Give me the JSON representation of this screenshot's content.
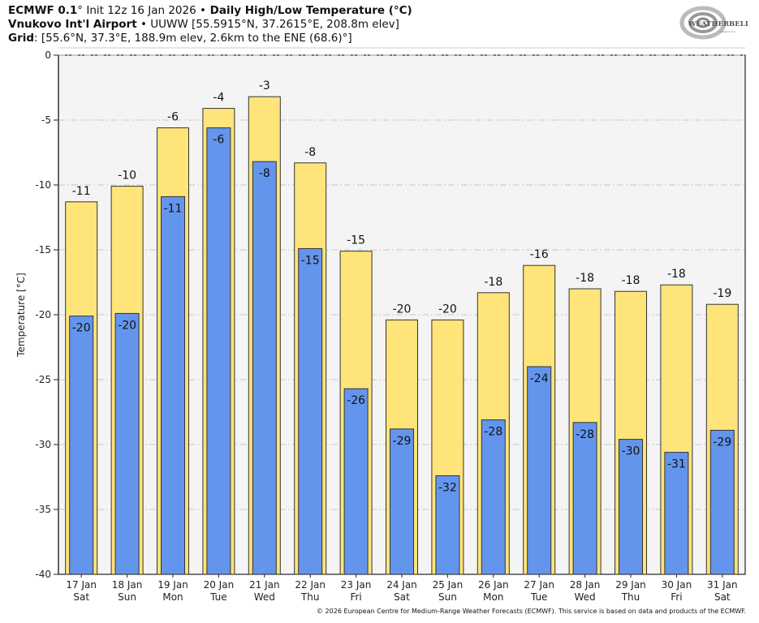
{
  "header": {
    "line1": {
      "bold1": "ECMWF 0.1",
      "deg1": "°",
      "normal1": " Init 12z 16 Jan 2026 ",
      "bullet": "•",
      "bold2": " Daily High/Low Temperature (°C)"
    },
    "line2": {
      "bold1": "Vnukovo Int'l Airport",
      "normal1": " • UUWW [55.5915°N, 37.2615°E, 208.8m elev]"
    },
    "line3": {
      "bold1": "Grid",
      "normal1": ": [55.6°N, 37.3°E, 188.9m elev, 2.6km to the ENE (68.6)°]"
    }
  },
  "logo": {
    "text_main": "WEATHERBELL",
    "text_sub": "Analytics LLC"
  },
  "footer": {
    "text": "© 2026 European Centre for Medium-Range Weather Forecasts (ECMWF). This service is based on data and products of the ECMWF."
  },
  "colors": {
    "high": "#FFE47A",
    "low": "#6495ED",
    "plot_bg": "#F4F4F4",
    "grid": "#C8C8C8",
    "bar_edge": "#333333"
  },
  "chart_data": {
    "type": "bar",
    "title": "Daily High/Low Temperature (°C)",
    "xlabel": "",
    "ylabel": "Temperature [°C]",
    "ylim": [
      -40,
      0
    ],
    "yticks": [
      0,
      -5,
      -10,
      -15,
      -20,
      -25,
      -30,
      -35,
      -40
    ],
    "grid": true,
    "categories": [
      {
        "date": "17 Jan",
        "day": "Sat"
      },
      {
        "date": "18 Jan",
        "day": "Sun"
      },
      {
        "date": "19 Jan",
        "day": "Mon"
      },
      {
        "date": "20 Jan",
        "day": "Tue"
      },
      {
        "date": "21 Jan",
        "day": "Wed"
      },
      {
        "date": "22 Jan",
        "day": "Thu"
      },
      {
        "date": "23 Jan",
        "day": "Fri"
      },
      {
        "date": "24 Jan",
        "day": "Sat"
      },
      {
        "date": "25 Jan",
        "day": "Sun"
      },
      {
        "date": "26 Jan",
        "day": "Mon"
      },
      {
        "date": "27 Jan",
        "day": "Tue"
      },
      {
        "date": "28 Jan",
        "day": "Wed"
      },
      {
        "date": "29 Jan",
        "day": "Thu"
      },
      {
        "date": "30 Jan",
        "day": "Fri"
      },
      {
        "date": "31 Jan",
        "day": "Sat"
      }
    ],
    "series": [
      {
        "name": "High",
        "values": [
          -11.3,
          -10.1,
          -5.6,
          -4.1,
          -3.2,
          -8.3,
          -15.1,
          -20.4,
          -20.4,
          -18.3,
          -16.2,
          -18.0,
          -18.2,
          -17.7,
          -19.2
        ],
        "labels": [
          "-11",
          "-10",
          "-6",
          "-4",
          "-3",
          "-8",
          "-15",
          "-20",
          "-20",
          "-18",
          "-16",
          "-18",
          "-18",
          "-18",
          "-19"
        ]
      },
      {
        "name": "Low",
        "values": [
          -20.1,
          -19.9,
          -10.9,
          -5.6,
          -8.2,
          -14.9,
          -25.7,
          -28.8,
          -32.4,
          -28.1,
          -24.0,
          -28.3,
          -29.6,
          -30.6,
          -28.9
        ],
        "labels": [
          "-20",
          "-20",
          "-11",
          "-6",
          "-8",
          "-15",
          "-26",
          "-29",
          "-32",
          "-28",
          "-24",
          "-28",
          "-30",
          "-31",
          "-29"
        ]
      }
    ]
  }
}
